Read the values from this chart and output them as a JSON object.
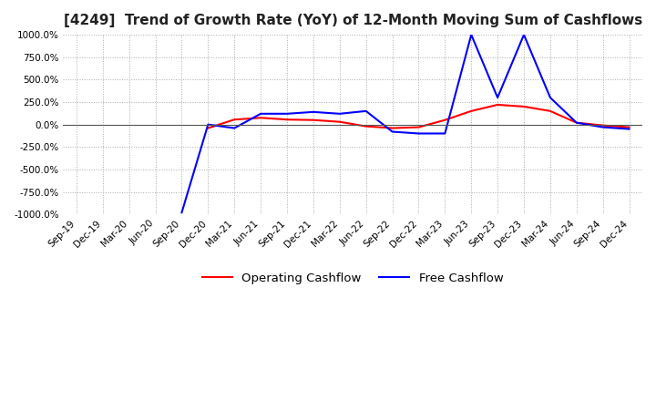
{
  "title": "[4249]  Trend of Growth Rate (YoY) of 12-Month Moving Sum of Cashflows",
  "title_fontsize": 11,
  "ylim": [
    -1000,
    1000
  ],
  "yticks": [
    -1000,
    -750,
    -500,
    -250,
    0,
    250,
    500,
    750,
    1000
  ],
  "background_color": "#ffffff",
  "grid_color": "#aaaaaa",
  "operating_color": "#ff0000",
  "free_color": "#0000ff",
  "legend_labels": [
    "Operating Cashflow",
    "Free Cashflow"
  ],
  "x_labels": [
    "Sep-19",
    "Dec-19",
    "Mar-20",
    "Jun-20",
    "Sep-20",
    "Dec-20",
    "Mar-21",
    "Jun-21",
    "Sep-21",
    "Dec-21",
    "Mar-22",
    "Jun-22",
    "Sep-22",
    "Dec-22",
    "Mar-23",
    "Jun-23",
    "Sep-23",
    "Dec-23",
    "Mar-24",
    "Jun-24",
    "Sep-24",
    "Dec-24"
  ],
  "operating_cashflow": [
    null,
    null,
    null,
    null,
    null,
    -40,
    55,
    75,
    55,
    50,
    30,
    -20,
    -40,
    -30,
    50,
    150,
    220,
    200,
    150,
    20,
    -10,
    -30
  ],
  "free_cashflow": [
    null,
    null,
    null,
    null,
    -980,
    0,
    -40,
    120,
    120,
    140,
    120,
    150,
    -80,
    -100,
    -100,
    1000,
    300,
    1000,
    300,
    20,
    -30,
    -50
  ]
}
